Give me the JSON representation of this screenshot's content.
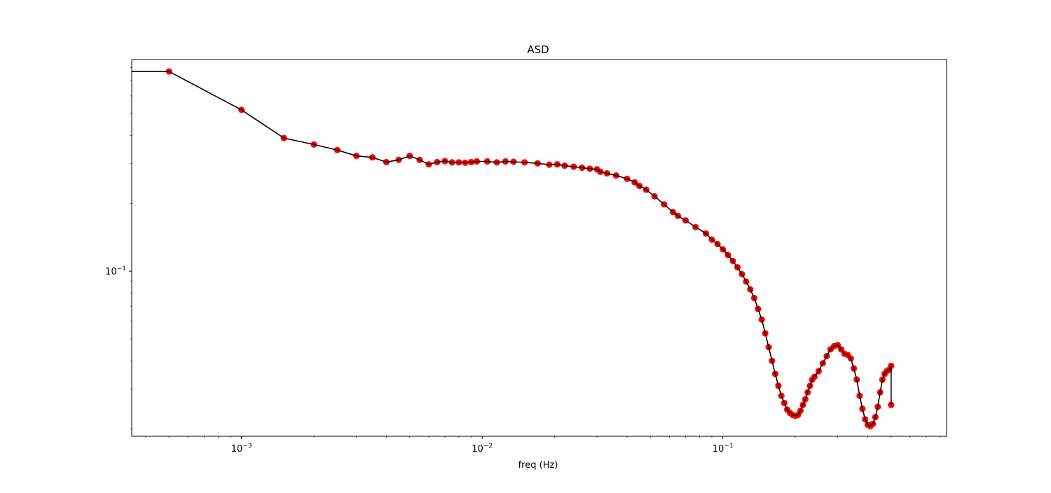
{
  "chart_data": {
    "type": "line",
    "title": "ASD",
    "xlabel": "freq (Hz)",
    "ylabel": "",
    "xscale": "log",
    "yscale": "log",
    "xlim": [
      0.00035,
      0.85
    ],
    "ylim": [
      0.0185,
      0.87
    ],
    "grid": false,
    "x_ticks": [
      {
        "value": 0.001,
        "base": "10",
        "exp": "−3"
      },
      {
        "value": 0.01,
        "base": "10",
        "exp": "−2"
      },
      {
        "value": 0.1,
        "base": "10",
        "exp": "−1"
      }
    ],
    "y_ticks": [
      {
        "value": 0.1,
        "base": "10",
        "exp": "−1"
      }
    ],
    "series": [
      {
        "line_color": "#000000",
        "marker_color": "#ff0000",
        "marker": "circle",
        "x": [
          0.0,
          0.0005,
          0.001,
          0.0015,
          0.002,
          0.0025,
          0.003,
          0.0035,
          0.004,
          0.0045,
          0.005,
          0.0055,
          0.006,
          0.0065,
          0.007,
          0.0075,
          0.008,
          0.0085,
          0.009,
          0.0095,
          0.0105,
          0.0115,
          0.0125,
          0.0135,
          0.015,
          0.017,
          0.019,
          0.0205,
          0.022,
          0.024,
          0.026,
          0.028,
          0.03,
          0.031,
          0.033,
          0.036,
          0.04,
          0.043,
          0.045,
          0.048,
          0.052,
          0.057,
          0.062,
          0.065,
          0.07,
          0.077,
          0.085,
          0.09,
          0.095,
          0.1,
          0.105,
          0.11,
          0.115,
          0.12,
          0.125,
          0.13,
          0.135,
          0.14,
          0.145,
          0.15,
          0.155,
          0.16,
          0.165,
          0.17,
          0.175,
          0.18,
          0.185,
          0.19,
          0.195,
          0.2,
          0.205,
          0.21,
          0.215,
          0.22,
          0.225,
          0.23,
          0.235,
          0.24,
          0.25,
          0.26,
          0.27,
          0.28,
          0.29,
          0.3,
          0.31,
          0.32,
          0.33,
          0.34,
          0.35,
          0.36,
          0.37,
          0.38,
          0.39,
          0.4,
          0.41,
          0.42,
          0.43,
          0.44,
          0.45,
          0.46,
          0.47,
          0.48,
          0.49,
          0.5,
          0.5
        ],
        "y": [
          0.77,
          0.77,
          0.52,
          0.39,
          0.365,
          0.345,
          0.325,
          0.32,
          0.305,
          0.312,
          0.325,
          0.312,
          0.298,
          0.305,
          0.308,
          0.304,
          0.304,
          0.303,
          0.305,
          0.307,
          0.307,
          0.304,
          0.307,
          0.306,
          0.304,
          0.301,
          0.297,
          0.298,
          0.294,
          0.291,
          0.288,
          0.285,
          0.283,
          0.276,
          0.272,
          0.266,
          0.257,
          0.248,
          0.239,
          0.23,
          0.215,
          0.198,
          0.183,
          0.176,
          0.168,
          0.157,
          0.147,
          0.138,
          0.132,
          0.125,
          0.118,
          0.111,
          0.104,
          0.097,
          0.09,
          0.083,
          0.076,
          0.068,
          0.061,
          0.053,
          0.046,
          0.04,
          0.035,
          0.031,
          0.028,
          0.026,
          0.0243,
          0.0235,
          0.023,
          0.0228,
          0.023,
          0.024,
          0.0255,
          0.027,
          0.029,
          0.031,
          0.033,
          0.034,
          0.036,
          0.039,
          0.042,
          0.045,
          0.0465,
          0.047,
          0.045,
          0.043,
          0.0425,
          0.041,
          0.037,
          0.033,
          0.028,
          0.0245,
          0.022,
          0.0208,
          0.0205,
          0.021,
          0.0225,
          0.025,
          0.029,
          0.033,
          0.035,
          0.036,
          0.0365,
          0.038,
          0.0255
        ]
      }
    ]
  }
}
